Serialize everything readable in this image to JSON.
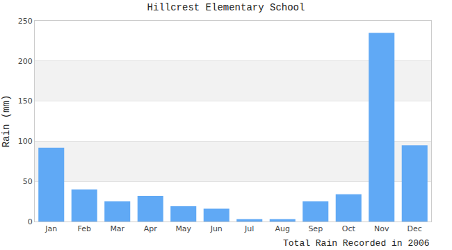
{
  "chart_data": {
    "type": "bar",
    "title": "Hillcrest Elementary School",
    "y_label": "Rain (mm)",
    "x_label": "Total Rain Recorded in 2006",
    "categories": [
      "Jan",
      "Feb",
      "Mar",
      "Apr",
      "May",
      "Jun",
      "Jul",
      "Aug",
      "Sep",
      "Oct",
      "Nov",
      "Dec"
    ],
    "values": [
      92,
      40,
      25,
      32,
      19,
      16,
      3,
      3,
      25,
      34,
      235,
      95
    ],
    "color": "#60a9f5",
    "ylim": [
      0,
      250
    ],
    "yticks": [
      0,
      50,
      100,
      150,
      200,
      250
    ],
    "grid": true
  }
}
